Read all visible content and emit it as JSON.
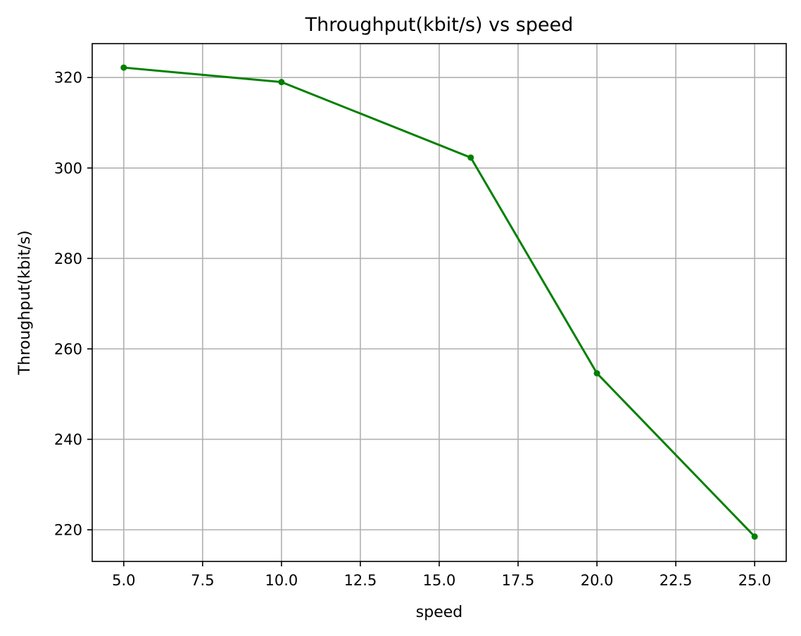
{
  "chart_data": {
    "type": "line",
    "title": "Throughput(kbit/s) vs speed",
    "xlabel": "speed",
    "ylabel": "Throughput(kbit/s)",
    "x": [
      5,
      10,
      16,
      20,
      25
    ],
    "series": [
      {
        "values": [
          322.2,
          319.0,
          302.3,
          254.6,
          218.5
        ],
        "color": "#008000",
        "marker": "circle"
      }
    ],
    "xlim": [
      4,
      26.0
    ],
    "ylim": [
      213.0,
      327.5
    ],
    "xticks": [
      5.0,
      7.5,
      10.0,
      12.5,
      15.0,
      17.5,
      20.0,
      22.5,
      25.0
    ],
    "xtick_labels": [
      "5.0",
      "7.5",
      "10.0",
      "12.5",
      "15.0",
      "17.5",
      "20.0",
      "22.5",
      "25.0"
    ],
    "yticks": [
      220,
      240,
      260,
      280,
      300,
      320
    ],
    "ytick_labels": [
      "220",
      "240",
      "260",
      "280",
      "300",
      "320"
    ],
    "grid": true,
    "grid_color": "#b0b0b0",
    "axes_color": "#000000"
  }
}
